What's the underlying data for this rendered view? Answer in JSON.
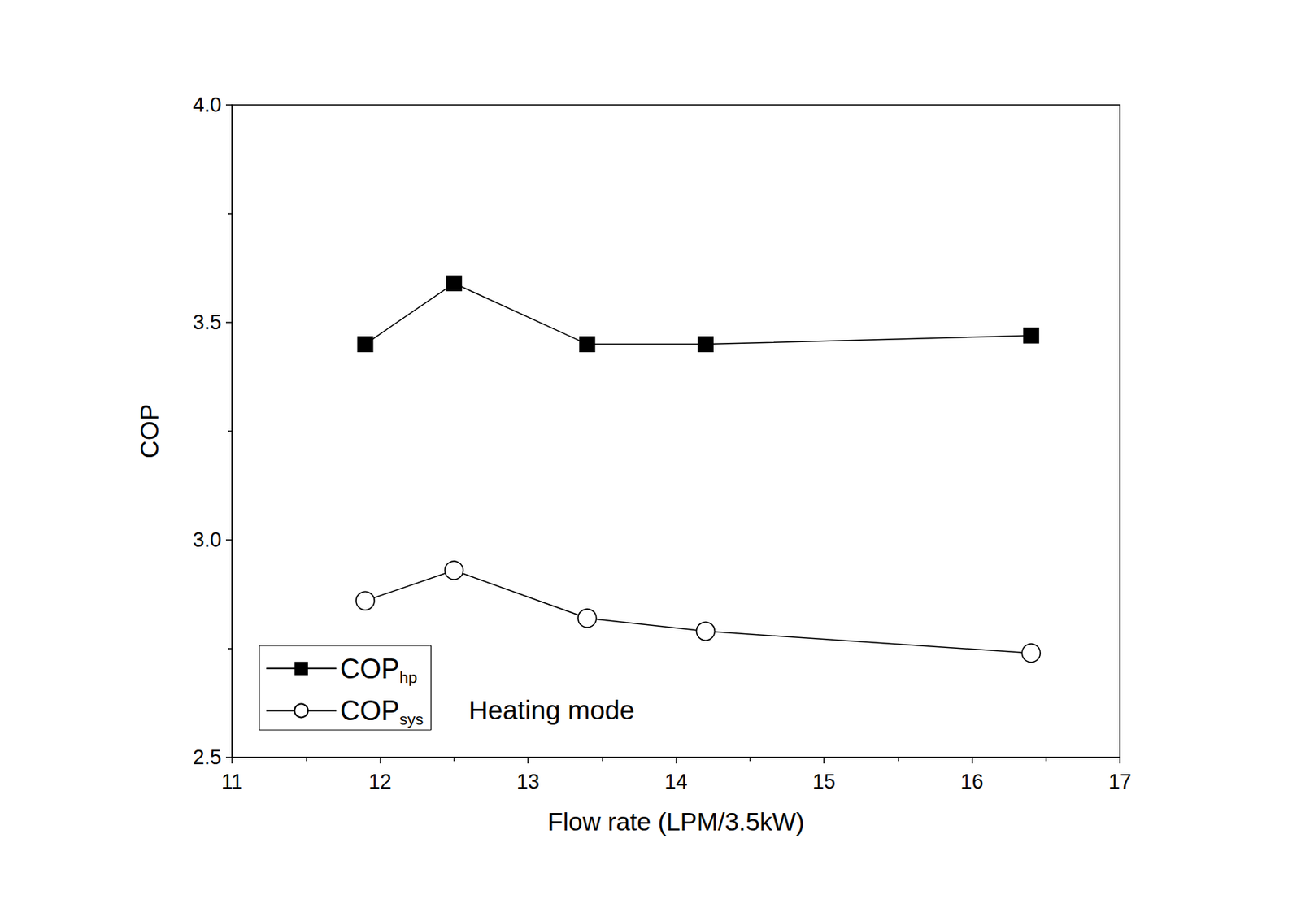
{
  "chart_data": {
    "type": "line",
    "x_label": "Flow rate (LPM/3.5kW)",
    "y_label": "COP",
    "annotation": "Heating mode",
    "xlim": [
      11,
      17
    ],
    "xticks": [
      11,
      12,
      13,
      14,
      15,
      16,
      17
    ],
    "ylim": [
      2.5,
      4.0
    ],
    "yticks": [
      2.5,
      {
        "value": 3.0,
        "label": "3.0"
      },
      3.5,
      {
        "value": 4.0,
        "label": "4.0"
      }
    ],
    "grid": false,
    "legend": "lower left",
    "series": [
      {
        "name": "COPhp",
        "color": "#000000",
        "marker": "square",
        "line_style": "solid",
        "x": [
          11.9,
          12.5,
          13.4,
          14.2,
          16.4
        ],
        "values": [
          3.45,
          3.59,
          3.45,
          3.45,
          3.47
        ]
      },
      {
        "name": "COPsys",
        "color": "#000000",
        "marker": "open_circle",
        "line_style": "solid",
        "x": [
          11.9,
          12.5,
          13.4,
          14.2,
          16.4
        ],
        "values": [
          2.86,
          2.93,
          2.82,
          2.79,
          2.74
        ]
      }
    ]
  }
}
